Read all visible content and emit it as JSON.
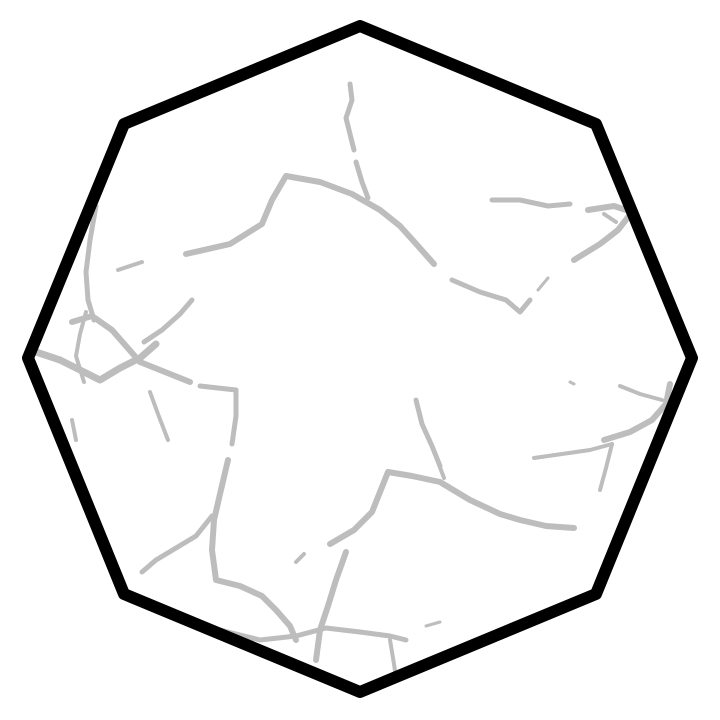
{
  "shape": {
    "kind": "octagon",
    "fill": "#ffffff",
    "outline_color": "#000000",
    "pattern": "marble-cracks",
    "crack_color": "#bdbdbd"
  },
  "background": "#ffffff"
}
